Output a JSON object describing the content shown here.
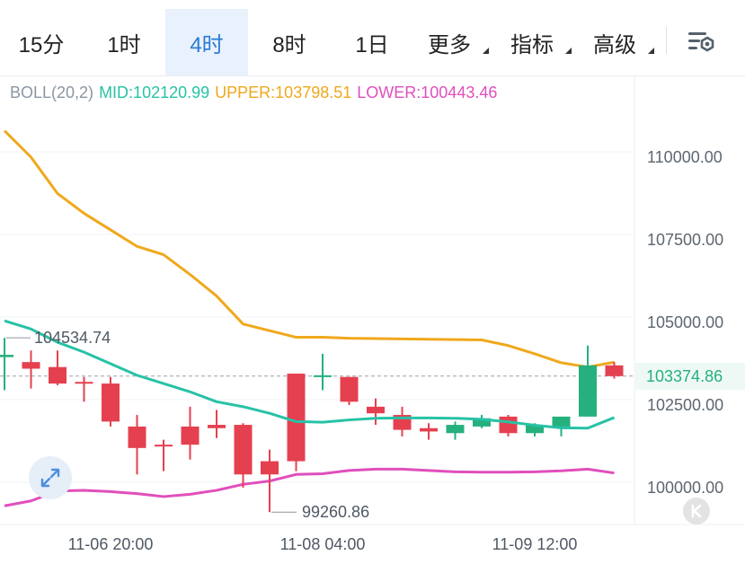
{
  "tabs": [
    {
      "label": "15分",
      "active": false,
      "dropdown": false
    },
    {
      "label": "1时",
      "active": false,
      "dropdown": false
    },
    {
      "label": "4时",
      "active": true,
      "dropdown": false
    },
    {
      "label": "8时",
      "active": false,
      "dropdown": false
    },
    {
      "label": "1日",
      "active": false,
      "dropdown": false
    },
    {
      "label": "更多",
      "active": false,
      "dropdown": true
    },
    {
      "label": "指标",
      "active": false,
      "dropdown": true
    },
    {
      "label": "高级",
      "active": false,
      "dropdown": true
    }
  ],
  "settings_icon": "chart-settings-icon",
  "indicator": {
    "name": "BOLL(20,2)",
    "mid": "MID:102120.99",
    "upper": "UPPER:103798.51",
    "lower": "LOWER:100443.46"
  },
  "current_price": "103374.86",
  "high_label": "104534.74",
  "low_label": "99260.86",
  "colors": {
    "up": "#26b07d",
    "down": "#e5404f",
    "mid": "#27c2a6",
    "upper": "#f0a81c",
    "lower": "#e04fbc",
    "active_tab": "#2a7ad6"
  },
  "chart_data": {
    "type": "candlestick",
    "y_axis": {
      "ticks": [
        "110000.00",
        "107500.00",
        "105000.00",
        "102500.00",
        "100000.00"
      ],
      "tick_values": [
        110000,
        107500,
        105000,
        102500,
        100000
      ],
      "range": [
        99000,
        111000
      ]
    },
    "x_axis": {
      "labels": [
        "11-06 20:00",
        "11-08 04:00",
        "11-09 12:00"
      ],
      "label_candle_index": [
        4,
        12,
        20
      ]
    },
    "candles": [
      {
        "o": 103950,
        "h": 104534.74,
        "l": 102950,
        "c": 104020
      },
      {
        "o": 103800,
        "h": 104150,
        "l": 103000,
        "c": 103600
      },
      {
        "o": 103650,
        "h": 104150,
        "l": 103100,
        "c": 103150
      },
      {
        "o": 103200,
        "h": 103350,
        "l": 102600,
        "c": 103150
      },
      {
        "o": 103150,
        "h": 103350,
        "l": 101850,
        "c": 102000
      },
      {
        "o": 101850,
        "h": 102200,
        "l": 100400,
        "c": 101200
      },
      {
        "o": 101300,
        "h": 101450,
        "l": 100500,
        "c": 101250
      },
      {
        "o": 101850,
        "h": 102450,
        "l": 100850,
        "c": 101300
      },
      {
        "o": 101900,
        "h": 102350,
        "l": 101500,
        "c": 101800
      },
      {
        "o": 101900,
        "h": 101950,
        "l": 100000,
        "c": 100400
      },
      {
        "o": 100800,
        "h": 101150,
        "l": 99260.86,
        "c": 100400
      },
      {
        "o": 103450,
        "h": 103450,
        "l": 100500,
        "c": 100800
      },
      {
        "o": 103380,
        "h": 104050,
        "l": 102950,
        "c": 103400
      },
      {
        "o": 103350,
        "h": 103350,
        "l": 102500,
        "c": 102600
      },
      {
        "o": 102450,
        "h": 102700,
        "l": 101900,
        "c": 102250
      },
      {
        "o": 102200,
        "h": 102450,
        "l": 101550,
        "c": 101750
      },
      {
        "o": 101800,
        "h": 101950,
        "l": 101450,
        "c": 101700
      },
      {
        "o": 101650,
        "h": 102000,
        "l": 101450,
        "c": 101900
      },
      {
        "o": 101850,
        "h": 102200,
        "l": 101800,
        "c": 102100
      },
      {
        "o": 102150,
        "h": 102200,
        "l": 101550,
        "c": 101650
      },
      {
        "o": 101650,
        "h": 101950,
        "l": 101550,
        "c": 101900
      },
      {
        "o": 101850,
        "h": 102150,
        "l": 101550,
        "c": 102150
      },
      {
        "o": 102150,
        "h": 104300,
        "l": 102150,
        "c": 103700
      },
      {
        "o": 103700,
        "h": 103800,
        "l": 103300,
        "c": 103374.86
      }
    ],
    "boll_upper": [
      110800,
      110000,
      108900,
      108300,
      107800,
      107300,
      107050,
      106450,
      105800,
      104950,
      104750,
      104550,
      104550,
      104520,
      104510,
      104500,
      104490,
      104480,
      104470,
      104300,
      104050,
      103780,
      103650,
      103798.51
    ],
    "boll_mid": [
      105050,
      104800,
      104400,
      104100,
      103750,
      103400,
      103150,
      102900,
      102600,
      102450,
      102250,
      102000,
      101980,
      102050,
      102100,
      102110,
      102110,
      102100,
      102070,
      101990,
      101890,
      101810,
      101800,
      102120.99
    ],
    "boll_lower": [
      99450,
      99600,
      99900,
      99920,
      99880,
      99820,
      99730,
      99800,
      99920,
      100100,
      100200,
      100400,
      100420,
      100520,
      100560,
      100560,
      100520,
      100480,
      100470,
      100470,
      100480,
      100510,
      100560,
      100443.46
    ]
  }
}
